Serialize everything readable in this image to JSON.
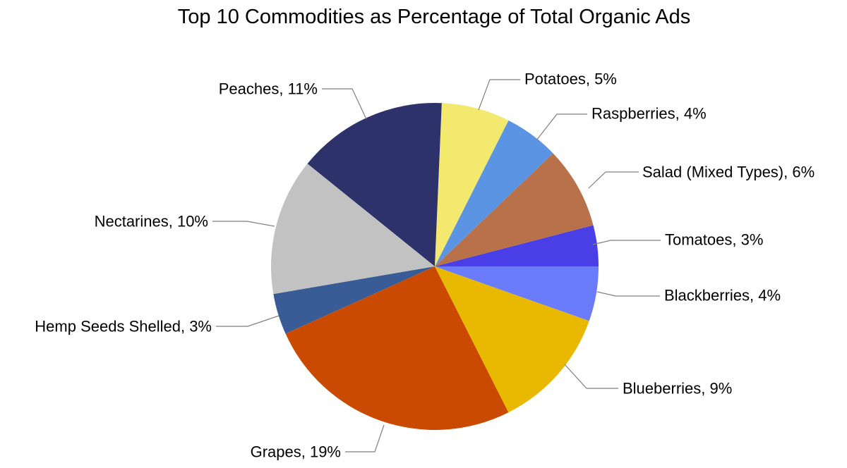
{
  "chart_data": {
    "type": "pie",
    "title": "Top 10 Commodities as Percentage of Total Organic Ads",
    "start": "3 o'clock",
    "direction": "counterclockwise",
    "slices": [
      {
        "label": "Tomatoes, 3%",
        "name": "Tomatoes",
        "value": 3,
        "color": "#4a3fe6"
      },
      {
        "label": "Salad (Mixed Types), 6%",
        "name": "Salad (Mixed Types)",
        "value": 6,
        "color": "#b87148"
      },
      {
        "label": "Raspberries, 4%",
        "name": "Raspberries",
        "value": 4,
        "color": "#5b94e3"
      },
      {
        "label": "Potatoes, 5%",
        "name": "Potatoes",
        "value": 5,
        "color": "#f3e96f"
      },
      {
        "label": "Peaches, 11%",
        "name": "Peaches",
        "value": 11,
        "color": "#2d326b"
      },
      {
        "label": "Nectarines, 10%",
        "name": "Nectarines",
        "value": 10,
        "color": "#c2c2c2"
      },
      {
        "label": "Hemp Seeds Shelled, 3%",
        "name": "Hemp Seeds Shelled",
        "value": 3,
        "color": "#3a5c96"
      },
      {
        "label": "Grapes, 19%",
        "name": "Grapes",
        "value": 19,
        "color": "#cb4a01"
      },
      {
        "label": "Blueberries, 9%",
        "name": "Blueberries",
        "value": 9,
        "color": "#e9b800"
      },
      {
        "label": "Blackberries, 4%",
        "name": "Blackberries",
        "value": 4,
        "color": "#6a7cfa"
      }
    ]
  }
}
